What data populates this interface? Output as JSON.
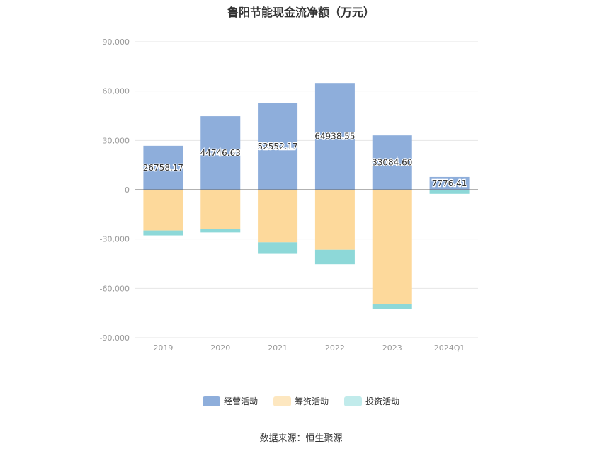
{
  "title": "鲁阳节能现金流净额（万元）",
  "source": "数据来源：恒生聚源",
  "chart_data": {
    "type": "bar",
    "stacked": true,
    "categories": [
      "2019",
      "2020",
      "2021",
      "2022",
      "2023",
      "2024Q1"
    ],
    "ylim": [
      -90000,
      90000
    ],
    "yticks": [
      90000,
      60000,
      30000,
      0,
      -30000,
      -60000,
      -90000
    ],
    "ytick_labels": [
      "90,000",
      "60,000",
      "30,000",
      "0",
      "-30,000",
      "-60,000",
      "-90,000"
    ],
    "grid": true,
    "legend_position": "bottom",
    "series": [
      {
        "name": "经营活动",
        "color": "#8eaedb",
        "values": [
          26758.17,
          44746.63,
          52552.17,
          64938.55,
          33084.6,
          7776.41
        ],
        "labels": [
          "26758.17",
          "44746.63",
          "52552.17",
          "64938.55",
          "33084.60",
          "7776.41"
        ]
      },
      {
        "name": "筹资活动",
        "color": "#fdd99b",
        "values": [
          -24800,
          -24000,
          -32000,
          -36500,
          -69500,
          -400
        ]
      },
      {
        "name": "投资活动",
        "color": "#8dd8d8",
        "values": [
          -3000,
          -2000,
          -7000,
          -8800,
          -3000,
          -2100
        ]
      }
    ]
  }
}
